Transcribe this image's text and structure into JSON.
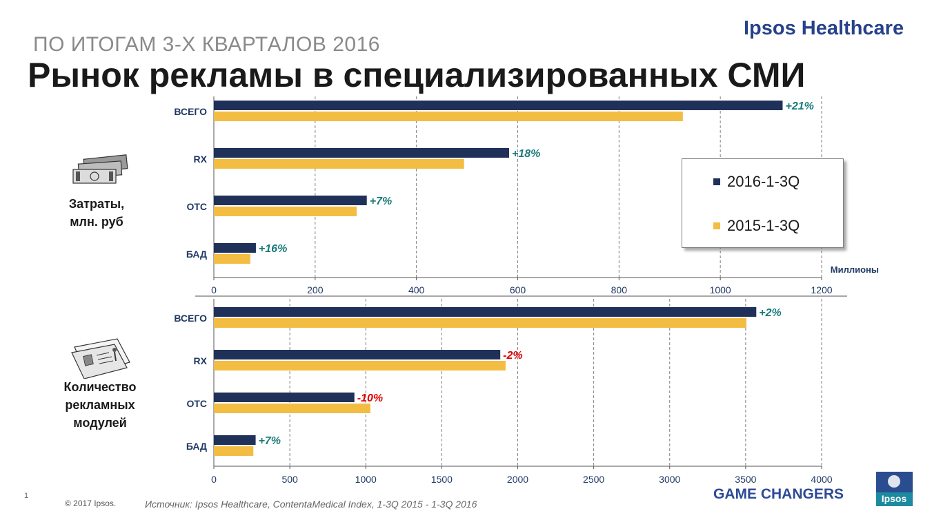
{
  "header": {
    "subtitle": "ПО ИТОГАМ 3-Х КВАРТАЛОВ 2016",
    "title": "Рынок рекламы в специализированных СМИ",
    "brand": "Ipsos Healthcare"
  },
  "sections": {
    "spend_label": "Затраты,\nмлн. руб",
    "modules_label": "Количество\nрекламных\nмодулей"
  },
  "legend": {
    "items": [
      {
        "label": "2016-1-3Q",
        "color": "#1f3059"
      },
      {
        "label": "2015-1-3Q",
        "color": "#f2bd42"
      }
    ]
  },
  "colors": {
    "series_2016": "#1f3059",
    "series_2015": "#f2bd42",
    "positive_change": "#1a7a7a",
    "negative_change": "#e00000"
  },
  "chart_data": [
    {
      "type": "bar",
      "orientation": "horizontal",
      "categories": [
        "ВСЕГО",
        "RX",
        "OTC",
        "БАД"
      ],
      "series": [
        {
          "name": "2016-1-3Q",
          "values": [
            1123,
            583,
            302,
            83
          ]
        },
        {
          "name": "2015-1-3Q",
          "values": [
            926,
            494,
            282,
            72
          ]
        }
      ],
      "annotations": [
        "+21%",
        "+18%",
        "+7%",
        "+16%"
      ],
      "xlim": [
        0,
        1200
      ],
      "ticks": [
        "0",
        "200",
        "400",
        "600",
        "800",
        "1000",
        "1200"
      ],
      "unit_label": "Миллионы",
      "grid": "vertical dashed"
    },
    {
      "type": "bar",
      "orientation": "horizontal",
      "categories": [
        "ВСЕГО",
        "RX",
        "OTC",
        "БАД"
      ],
      "series": [
        {
          "name": "2016-1-3Q",
          "values": [
            3570,
            1885,
            925,
            275
          ]
        },
        {
          "name": "2015-1-3Q",
          "values": [
            3505,
            1920,
            1030,
            260
          ]
        }
      ],
      "annotations": [
        "+2%",
        "-2%",
        "-10%",
        "+7%"
      ],
      "xlim": [
        0,
        4000
      ],
      "ticks": [
        "0",
        "500",
        "1000",
        "1500",
        "2000",
        "2500",
        "3000",
        "3500",
        "4000"
      ],
      "grid": "vertical dashed"
    }
  ],
  "footer": {
    "page_number": "1",
    "copyright": "© 2017 Ipsos.",
    "source": "Источник: Ipsos Healthcare, ContentaMedical Index, 1-3Q 2015  - 1-3Q 2016",
    "tagline": "GAME CHANGERS",
    "logo_text": "Ipsos"
  }
}
